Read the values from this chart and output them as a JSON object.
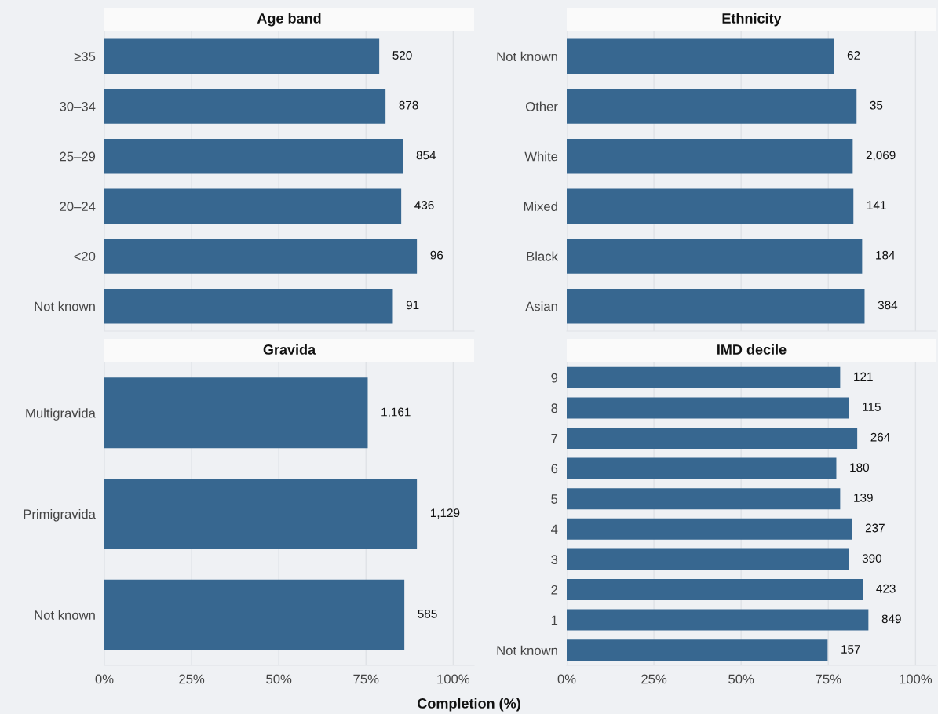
{
  "chart_data": [
    {
      "type": "bar",
      "orientation": "horizontal",
      "title": "Age band",
      "categories": [
        "≥35",
        "30–34",
        "25–29",
        "20–24",
        "<20",
        "Not known"
      ],
      "values": [
        78.8,
        80.6,
        85.6,
        85.1,
        89.6,
        82.7
      ],
      "color": "#376790",
      "xlim": [
        0,
        106
      ],
      "xticks": [
        0,
        25,
        50,
        75,
        100
      ],
      "grid": "x",
      "tick_labels": "y",
      "annotations": [
        {
          "text": "520",
          "x": 78.8,
          "y": "≥35"
        },
        {
          "text": "878",
          "x": 80.6,
          "y": "30–34"
        },
        {
          "text": "854",
          "x": 85.6,
          "y": "25–29"
        },
        {
          "text": "436",
          "x": 85.1,
          "y": "20–24"
        },
        {
          "text": "96",
          "x": 89.6,
          "y": "<20"
        },
        {
          "text": "91",
          "x": 82.7,
          "y": "Not known"
        }
      ]
    },
    {
      "type": "bar",
      "orientation": "horizontal",
      "title": "Ethnicity",
      "categories": [
        "Not known",
        "Other",
        "White",
        "Mixed",
        "Black",
        "Asian"
      ],
      "values": [
        76.6,
        83.1,
        82.0,
        82.2,
        84.7,
        85.4
      ],
      "color": "#376790",
      "xlim": [
        0,
        106
      ],
      "xticks": [
        0,
        25,
        50,
        75,
        100
      ],
      "grid": "x",
      "tick_labels": "y",
      "annotations": [
        {
          "text": "62",
          "x": 76.6,
          "y": "Not known"
        },
        {
          "text": "35",
          "x": 83.1,
          "y": "Other"
        },
        {
          "text": "2,069",
          "x": 82.0,
          "y": "White"
        },
        {
          "text": "141",
          "x": 82.2,
          "y": "Mixed"
        },
        {
          "text": "184",
          "x": 84.7,
          "y": "Black"
        },
        {
          "text": "384",
          "x": 85.4,
          "y": "Asian"
        }
      ]
    },
    {
      "type": "bar",
      "orientation": "horizontal",
      "title": "Gravida",
      "categories": [
        "Multigravida",
        "Primigravida",
        "Not known"
      ],
      "values": [
        75.5,
        89.6,
        86.0
      ],
      "color": "#376790",
      "xlim": [
        0,
        106
      ],
      "xticks": [
        {
          "value": 0,
          "label": "0%"
        },
        {
          "value": 25,
          "label": "25%"
        },
        {
          "value": 50,
          "label": "50%"
        },
        {
          "value": 75,
          "label": "75%"
        },
        {
          "value": 100,
          "label": "100%"
        }
      ],
      "grid": "x",
      "xlabel": "Completion (%)",
      "annotations": [
        {
          "text": "1,161",
          "x": 75.5,
          "y": "Multigravida"
        },
        {
          "text": "1,129",
          "x": 89.6,
          "y": "Primigravida"
        },
        {
          "text": "585",
          "x": 86.0,
          "y": "Not known"
        }
      ]
    },
    {
      "type": "bar",
      "orientation": "horizontal",
      "title": "IMD decile",
      "categories": [
        "9",
        "8",
        "7",
        "6",
        "5",
        "4",
        "3",
        "2",
        "1",
        "Not known"
      ],
      "values": [
        78.4,
        80.9,
        83.3,
        77.3,
        78.4,
        81.8,
        80.9,
        84.9,
        86.5,
        74.8
      ],
      "color": "#376790",
      "xlim": [
        0,
        106
      ],
      "xticks": [
        {
          "value": 0,
          "label": "0%"
        },
        {
          "value": 25,
          "label": "25%"
        },
        {
          "value": 50,
          "label": "50%"
        },
        {
          "value": 75,
          "label": "75%"
        },
        {
          "value": 100,
          "label": "100%"
        }
      ],
      "grid": "x",
      "annotations": [
        {
          "text": "121",
          "x": 78.4,
          "y": "9"
        },
        {
          "text": "115",
          "x": 80.9,
          "y": "8"
        },
        {
          "text": "264",
          "x": 83.3,
          "y": "7"
        },
        {
          "text": "180",
          "x": 77.3,
          "y": "6"
        },
        {
          "text": "139",
          "x": 78.4,
          "y": "5"
        },
        {
          "text": "237",
          "x": 81.8,
          "y": "4"
        },
        {
          "text": "390",
          "x": 80.9,
          "y": "3"
        },
        {
          "text": "423",
          "x": 84.9,
          "y": "2"
        },
        {
          "text": "849",
          "x": 86.5,
          "y": "1"
        },
        {
          "text": "157",
          "x": 74.8,
          "y": "Not known"
        }
      ]
    }
  ]
}
